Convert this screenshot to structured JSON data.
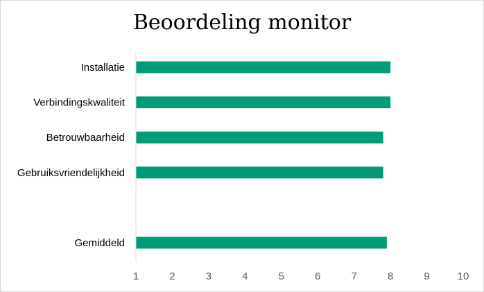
{
  "chart_data": {
    "type": "bar",
    "orientation": "horizontal",
    "title": "Beoordeling monitor",
    "categories": [
      "Installatie",
      "Verbindingskwaliteit",
      "Betrouwbaarheid",
      "Gebruiksvriendelijkheid",
      "",
      "Gemiddeld"
    ],
    "values": [
      8.0,
      8.0,
      7.8,
      7.8,
      null,
      7.9
    ],
    "xlim": [
      1,
      10
    ],
    "xticks": [
      "1",
      "2",
      "3",
      "4",
      "5",
      "6",
      "7",
      "8",
      "9",
      "10"
    ],
    "xlabel": "",
    "ylabel": "",
    "grid": false,
    "legend": "none",
    "bar_color": "#009B77"
  }
}
